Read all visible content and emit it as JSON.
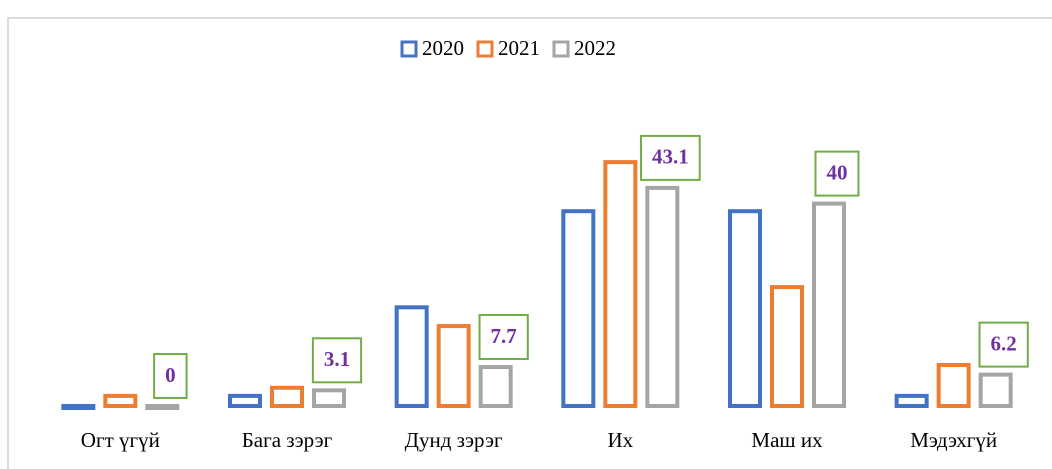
{
  "chart_data": {
    "type": "bar",
    "categories": [
      "Огт үгүй",
      "Бага зэрэг",
      "Дунд зэрэг",
      "Их",
      "Маш их",
      "Мэдэхгүй"
    ],
    "series": [
      {
        "name": "2020",
        "color": "#4472c4",
        "values": [
          0,
          2,
          19.5,
          38.5,
          38.5,
          2
        ]
      },
      {
        "name": "2021",
        "color": "#ed7d31",
        "values": [
          2,
          3.6,
          15.8,
          48.2,
          23.5,
          8.1
        ]
      },
      {
        "name": "2022",
        "color": "#a5a5a5",
        "values": [
          0,
          3.1,
          7.7,
          43.1,
          40,
          6.2
        ]
      }
    ],
    "ylim": [
      0,
      50
    ],
    "legend": "top"
  }
}
